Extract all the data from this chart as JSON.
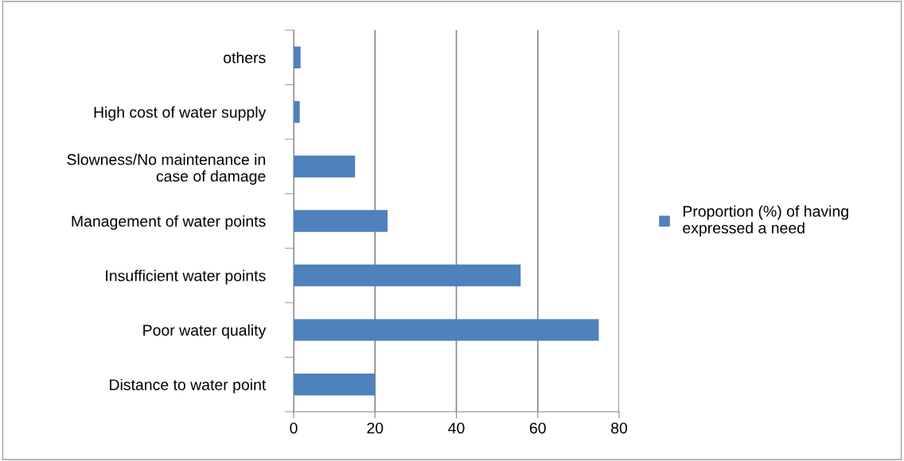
{
  "chart_data": {
    "type": "bar",
    "orientation": "horizontal",
    "categories": [
      "others",
      "High cost of water supply",
      "Slowness/No maintenance in case of damage",
      "Management of water points",
      "Insufficient water points",
      "Poor water quality",
      "Distance to water point"
    ],
    "series": [
      {
        "name": "Proportion (%) of having expressed a need",
        "color": "#4f81bd",
        "values": [
          1.7,
          1.5,
          15.1,
          23.1,
          55.8,
          75.0,
          20.0
        ]
      }
    ],
    "xlim": [
      0,
      80
    ],
    "xticks": [
      0,
      20,
      40,
      60,
      80
    ],
    "grid": "x",
    "legend": "right"
  }
}
